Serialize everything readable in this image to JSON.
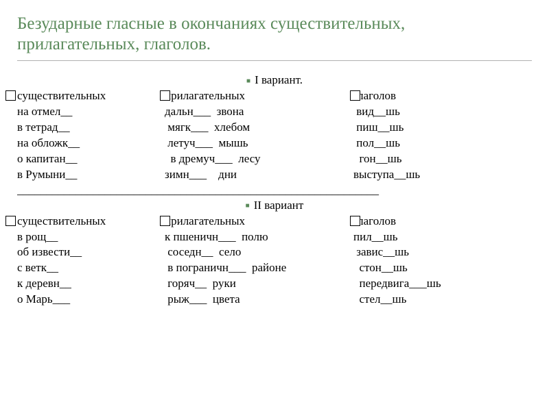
{
  "title": {
    "line1": "Безударные гласные в окончаниях существительных,",
    "line2": "прилагательных, глаголов.",
    "color": "#5a8a5a",
    "fontsize": 25
  },
  "variant1": {
    "header": "I вариант.",
    "columns": [
      {
        "head": "существительных",
        "rows": [
          "на отмел__",
          "в тетрад__",
          "на обложк__",
          "о капитан__",
          "в Румыни__"
        ]
      },
      {
        "head": "  прилагательных",
        "rows": [
          "дальн___  звона",
          " мягк___  хлебом",
          " летуч___  мышь",
          "  в дремуч___  лесу",
          "зимн___    дни"
        ]
      },
      {
        "head": "  глаголов",
        "rows": [
          " вид__шь",
          " пиш__шь",
          " пол__шь",
          "  гон__шь",
          "выступа__шь"
        ]
      }
    ]
  },
  "separator_text": "______________________________________________________________",
  "variant2": {
    "header": "II вариант",
    "columns": [
      {
        "head": "существительных",
        "rows": [
          "в рощ__",
          "об извести__",
          "с ветк__",
          "к деревн__",
          "о Марь___"
        ]
      },
      {
        "head": "  прилагательных",
        "rows": [
          "к пшеничн___  полю",
          " соседн__  село",
          " в пограничн___  районе",
          " горяч__  руки",
          " рыж___  цвета"
        ]
      },
      {
        "head": "глаголов",
        "rows": [
          "пил__шь",
          " завис__шь",
          "  стон__шь",
          "  передвига___шь",
          "  стел__шь"
        ]
      }
    ]
  },
  "style": {
    "text_color": "#000000",
    "bullet_color": "#5a8a5a",
    "title_underline_color": "#b0b0b0",
    "body_fontsize": 17,
    "font_family": "Times New Roman"
  }
}
